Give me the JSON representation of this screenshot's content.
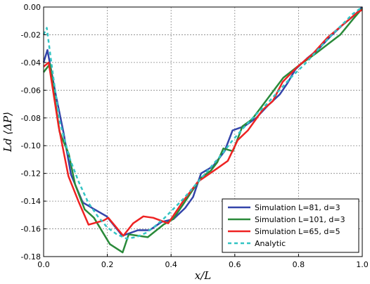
{
  "chart_data": {
    "type": "line",
    "xlabel": "x/L",
    "ylabel": "Ld ⟨ΔP⟩",
    "xlim": [
      0.0,
      1.0
    ],
    "ylim": [
      -0.18,
      0.0
    ],
    "xticks": [
      "0.0",
      "0.2",
      "0.4",
      "0.6",
      "0.8",
      "1.0"
    ],
    "yticks": [
      "0.00",
      "-0.02",
      "-0.04",
      "-0.06",
      "-0.08",
      "-0.10",
      "-0.12",
      "-0.14",
      "-0.16",
      "-0.18"
    ],
    "grid": true,
    "legend_position": "lower-right",
    "series": [
      {
        "name": "Simulation L=81, d=3",
        "color": "#3344aa",
        "dashed": false,
        "x": [
          0.0,
          0.012,
          0.037,
          0.062,
          0.086,
          0.123,
          0.16,
          0.198,
          0.247,
          0.296,
          0.333,
          0.37,
          0.407,
          0.444,
          0.469,
          0.494,
          0.531,
          0.568,
          0.593,
          0.63,
          0.667,
          0.704,
          0.741,
          0.765,
          0.79,
          0.827,
          0.864,
          0.901,
          0.938,
          0.975,
          1.0
        ],
        "y": [
          -0.04,
          -0.031,
          -0.062,
          -0.09,
          -0.121,
          -0.141,
          -0.146,
          -0.151,
          -0.165,
          -0.161,
          -0.161,
          -0.155,
          -0.153,
          -0.145,
          -0.137,
          -0.12,
          -0.115,
          -0.104,
          -0.089,
          -0.086,
          -0.08,
          -0.071,
          -0.063,
          -0.055,
          -0.045,
          -0.037,
          -0.03,
          -0.021,
          -0.013,
          -0.006,
          0.0
        ]
      },
      {
        "name": "Simulation L=101, d=3",
        "color": "#2a8a3a",
        "dashed": false,
        "x": [
          0.0,
          0.02,
          0.05,
          0.079,
          0.099,
          0.129,
          0.158,
          0.208,
          0.248,
          0.267,
          0.327,
          0.376,
          0.406,
          0.436,
          0.465,
          0.495,
          0.525,
          0.545,
          0.564,
          0.594,
          0.624,
          0.654,
          0.703,
          0.752,
          0.802,
          0.851,
          0.891,
          0.931,
          0.97,
          1.0
        ],
        "y": [
          -0.047,
          -0.041,
          -0.09,
          -0.106,
          -0.128,
          -0.146,
          -0.152,
          -0.171,
          -0.177,
          -0.164,
          -0.166,
          -0.157,
          -0.153,
          -0.143,
          -0.133,
          -0.123,
          -0.118,
          -0.112,
          -0.102,
          -0.104,
          -0.086,
          -0.081,
          -0.066,
          -0.051,
          -0.042,
          -0.034,
          -0.027,
          -0.02,
          -0.009,
          -0.001
        ]
      },
      {
        "name": "Simulation L=65, d=5",
        "color": "#ee2222",
        "dashed": false,
        "x": [
          0.0,
          0.016,
          0.047,
          0.078,
          0.109,
          0.141,
          0.188,
          0.203,
          0.25,
          0.281,
          0.313,
          0.344,
          0.391,
          0.438,
          0.484,
          0.516,
          0.547,
          0.578,
          0.609,
          0.641,
          0.688,
          0.719,
          0.75,
          0.797,
          0.844,
          0.891,
          0.938,
          0.984,
          1.0
        ],
        "y": [
          -0.043,
          -0.04,
          -0.086,
          -0.122,
          -0.14,
          -0.157,
          -0.154,
          -0.152,
          -0.165,
          -0.156,
          -0.151,
          -0.152,
          -0.156,
          -0.14,
          -0.126,
          -0.121,
          -0.116,
          -0.111,
          -0.096,
          -0.089,
          -0.074,
          -0.068,
          -0.054,
          -0.043,
          -0.034,
          -0.022,
          -0.013,
          -0.004,
          -0.002
        ]
      },
      {
        "name": "Analytic",
        "color": "#33c4c4",
        "dashed": true,
        "x": [
          0.0,
          0.01,
          0.03,
          0.05,
          0.08,
          0.11,
          0.14,
          0.17,
          0.2,
          0.23,
          0.26,
          0.29,
          0.32,
          0.35,
          0.38,
          0.41,
          0.44,
          0.47,
          0.5,
          0.53,
          0.56,
          0.59,
          0.62,
          0.66,
          0.7,
          0.74,
          0.78,
          0.82,
          0.86,
          0.9,
          0.94,
          0.97,
          1.0
        ],
        "y": [
          -0.02,
          -0.015,
          -0.05,
          -0.082,
          -0.108,
          -0.126,
          -0.141,
          -0.151,
          -0.159,
          -0.164,
          -0.167,
          -0.166,
          -0.163,
          -0.158,
          -0.152,
          -0.145,
          -0.138,
          -0.13,
          -0.122,
          -0.114,
          -0.106,
          -0.097,
          -0.089,
          -0.079,
          -0.07,
          -0.06,
          -0.05,
          -0.041,
          -0.031,
          -0.021,
          -0.012,
          -0.005,
          0.0
        ]
      }
    ]
  }
}
